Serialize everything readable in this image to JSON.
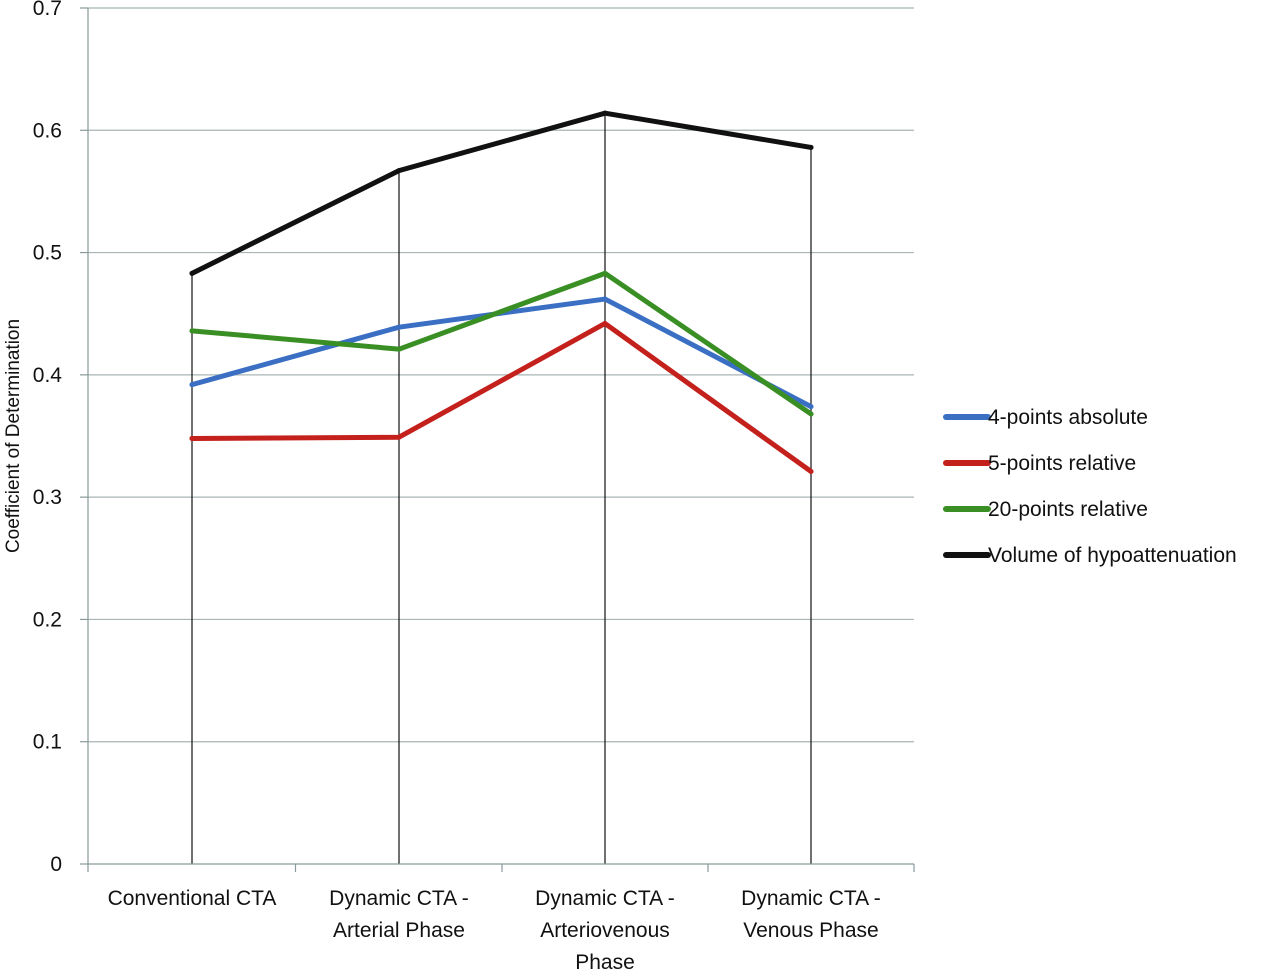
{
  "chart_data": {
    "type": "line",
    "categories": [
      [
        "Conventional CTA"
      ],
      [
        "Dynamic CTA -",
        "Arterial Phase"
      ],
      [
        "Dynamic CTA -",
        "Arteriovenous",
        "Phase"
      ],
      [
        "Dynamic CTA -",
        "Venous Phase"
      ]
    ],
    "ylabel": "Coefficient of Determination",
    "xlabel": "",
    "ylim": [
      0,
      0.7
    ],
    "yticks": [
      "0",
      "0.1",
      "0.2",
      "0.3",
      "0.4",
      "0.5",
      "0.6",
      "0.7"
    ],
    "grid": true,
    "legend_position": "right",
    "series": [
      {
        "name": "4-points absolute",
        "color": "#3a6fc4",
        "values": [
          0.392,
          0.439,
          0.462,
          0.374
        ]
      },
      {
        "name": "5-points relative",
        "color": "#c4201c",
        "values": [
          0.348,
          0.349,
          0.442,
          0.321
        ]
      },
      {
        "name": "20-points relative",
        "color": "#3a8f24",
        "values": [
          0.436,
          0.421,
          0.483,
          0.368
        ]
      },
      {
        "name": "Volume of hypoattenuation",
        "color": "#111111",
        "values": [
          0.483,
          0.567,
          0.614,
          0.586
        ]
      }
    ]
  }
}
